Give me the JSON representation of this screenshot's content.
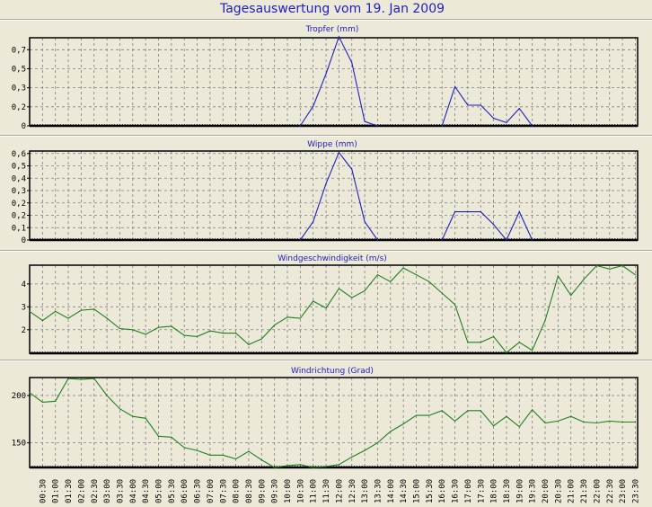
{
  "title": "Tagesauswertung vom 19. Jan 2009",
  "colors": {
    "background": "#ECE9D8",
    "title": "#2020C0",
    "rain": "#2020C0",
    "wind": "#208020",
    "grid": "#808080"
  },
  "x_labels": [
    "00:30",
    "01:00",
    "01:30",
    "02:00",
    "02:30",
    "03:00",
    "03:30",
    "04:00",
    "04:30",
    "05:00",
    "05:30",
    "06:00",
    "06:30",
    "07:00",
    "07:30",
    "08:00",
    "08:30",
    "09:00",
    "09:30",
    "10:00",
    "10:30",
    "11:00",
    "11:30",
    "12:00",
    "12:30",
    "13:00",
    "13:30",
    "14:00",
    "14:30",
    "15:00",
    "15:30",
    "16:00",
    "16:30",
    "17:00",
    "17:30",
    "18:00",
    "18:30",
    "19:00",
    "19:30",
    "20:00",
    "20:30",
    "21:00",
    "21:30",
    "22:00",
    "22:30",
    "23:00",
    "23:30"
  ],
  "chart_data": [
    {
      "type": "line",
      "title": "Tropfer (mm)",
      "x_unit": "half-hour index from 00:00",
      "points": [
        [
          21,
          0
        ],
        [
          22,
          0.18
        ],
        [
          23,
          0.48
        ],
        [
          24,
          0.82
        ],
        [
          25,
          0.58
        ],
        [
          26,
          0.04
        ],
        [
          27,
          0
        ],
        [
          32,
          0
        ],
        [
          33,
          0.36
        ],
        [
          34,
          0.19
        ],
        [
          35,
          0.19
        ],
        [
          36,
          0.07
        ],
        [
          37,
          0.03
        ],
        [
          38,
          0.16
        ],
        [
          39,
          0
        ]
      ],
      "yticks": [
        0,
        0.175,
        0.35,
        0.525,
        0.7
      ],
      "ytick_labels": [
        "0",
        "0,2",
        "0,3",
        "0,5",
        "0,7"
      ],
      "ylim": [
        0,
        0.81
      ],
      "color": "#2020C0"
    },
    {
      "type": "line",
      "title": "Wippe (mm)",
      "x_unit": "half-hour index from 00:00",
      "points": [
        [
          21,
          0
        ],
        [
          22,
          0.13
        ],
        [
          23,
          0.4
        ],
        [
          24,
          0.62
        ],
        [
          25,
          0.5
        ],
        [
          26,
          0.13
        ],
        [
          27,
          0
        ],
        [
          32,
          0
        ],
        [
          33,
          0.2
        ],
        [
          34,
          0.2
        ],
        [
          35,
          0.2
        ],
        [
          36,
          0.11
        ],
        [
          37,
          0
        ],
        [
          38,
          0.2
        ],
        [
          39,
          0
        ]
      ],
      "yticks": [
        0,
        0.0875,
        0.175,
        0.2625,
        0.35,
        0.4375,
        0.525,
        0.6125
      ],
      "ytick_labels": [
        "0",
        "0,1",
        "0,2",
        "0,2",
        "0,3",
        "0,4",
        "0,5",
        "0,6"
      ],
      "ylim": [
        0,
        0.63
      ],
      "color": "#2020C0"
    },
    {
      "type": "line",
      "title": "Windgeschwindigkeit (m/s)",
      "x_unit": "half-hour index from 00:00",
      "values": [
        2.8,
        2.4,
        2.8,
        2.5,
        2.85,
        2.9,
        2.5,
        2.05,
        2.0,
        1.8,
        2.1,
        2.15,
        1.75,
        1.7,
        1.95,
        1.85,
        1.85,
        1.35,
        1.6,
        2.2,
        2.55,
        2.5,
        3.25,
        2.95,
        3.8,
        3.4,
        3.7,
        4.4,
        4.1,
        4.7,
        4.4,
        4.1,
        3.6,
        3.1,
        1.45,
        1.45,
        1.7,
        1.0,
        1.45,
        1.1,
        2.4,
        4.35,
        3.5,
        4.2,
        4.8,
        4.65,
        4.8,
        4.4
      ],
      "yticks": [
        2,
        3,
        4
      ],
      "ytick_labels": [
        "2",
        "3",
        "4"
      ],
      "ylim": [
        0.97,
        4.82
      ],
      "color": "#208020"
    },
    {
      "type": "line",
      "title": "Windrichtung (Grad)",
      "x_unit": "half-hour index from 00:00",
      "values": [
        203,
        193,
        194,
        218,
        217,
        218,
        200,
        186,
        178,
        176,
        157,
        156,
        145,
        142,
        137,
        137,
        133,
        141,
        132,
        124,
        126,
        127,
        124,
        125,
        127,
        135,
        142,
        150,
        162,
        170,
        179,
        179,
        184,
        173,
        184,
        184,
        168,
        178,
        167,
        185,
        171,
        173,
        178,
        172,
        171,
        173,
        172,
        172
      ],
      "yticks": [
        150,
        200
      ],
      "ytick_labels": [
        "150",
        "200"
      ],
      "ylim": [
        124,
        219
      ],
      "color": "#208020"
    }
  ]
}
